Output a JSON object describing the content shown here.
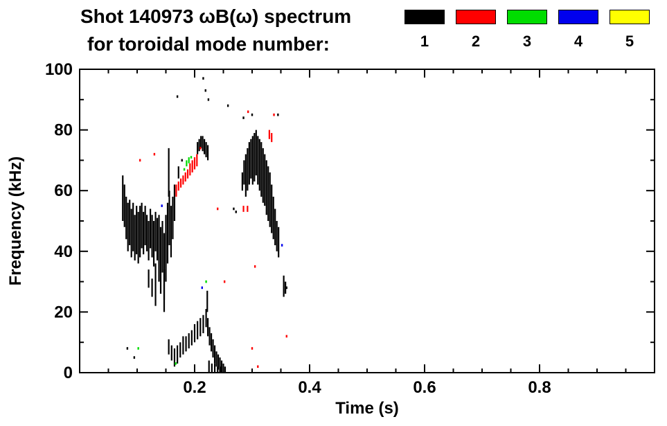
{
  "chart_data": {
    "type": "scatter",
    "title_line1": "Shot 140973 ωB(ω) spectrum",
    "title_line2": "for toroidal mode number:",
    "xlabel": "Time (s)",
    "ylabel": "Frequency (kHz)",
    "xlim": [
      0.0,
      1.0
    ],
    "ylim": [
      0,
      100
    ],
    "xticks": [
      0.2,
      0.4,
      0.6,
      0.8
    ],
    "xminor_step": 0.05,
    "yticks": [
      0,
      20,
      40,
      60,
      80,
      100
    ],
    "yminor_step": 10,
    "grid": false,
    "legend_position": "top-right",
    "legend": [
      {
        "label": "1",
        "color": "#000000"
      },
      {
        "label": "2",
        "color": "#ff0000"
      },
      {
        "label": "3",
        "color": "#00dd00"
      },
      {
        "label": "4",
        "color": "#0000ee"
      },
      {
        "label": "5",
        "color": "#ffff00"
      }
    ],
    "series": [
      {
        "name": "1",
        "color": "#000000",
        "segments": [
          [
            0.075,
            50,
            65
          ],
          [
            0.078,
            48,
            62
          ],
          [
            0.081,
            44,
            58
          ],
          [
            0.084,
            40,
            56
          ],
          [
            0.087,
            42,
            57
          ],
          [
            0.09,
            38,
            54
          ],
          [
            0.093,
            40,
            56
          ],
          [
            0.096,
            37,
            52
          ],
          [
            0.099,
            39,
            55
          ],
          [
            0.102,
            36,
            53
          ],
          [
            0.105,
            38,
            55
          ],
          [
            0.108,
            41,
            56
          ],
          [
            0.111,
            39,
            53
          ],
          [
            0.114,
            42,
            55
          ],
          [
            0.117,
            40,
            52
          ],
          [
            0.12,
            37,
            50
          ],
          [
            0.123,
            41,
            54
          ],
          [
            0.126,
            38,
            52
          ],
          [
            0.129,
            35,
            50
          ],
          [
            0.132,
            40,
            53
          ],
          [
            0.135,
            37,
            51
          ],
          [
            0.138,
            30,
            52
          ],
          [
            0.141,
            26,
            48
          ],
          [
            0.144,
            33,
            50
          ],
          [
            0.147,
            24,
            46
          ],
          [
            0.15,
            30,
            52
          ],
          [
            0.153,
            36,
            56
          ],
          [
            0.156,
            42,
            60
          ],
          [
            0.159,
            38,
            55
          ],
          [
            0.162,
            44,
            58
          ],
          [
            0.132,
            22,
            36
          ],
          [
            0.147,
            20,
            34
          ],
          [
            0.12,
            28,
            34
          ],
          [
            0.126,
            25,
            31
          ],
          [
            0.155,
            58,
            74
          ],
          [
            0.165,
            50,
            62
          ],
          [
            0.172,
            64,
            68
          ],
          [
            0.205,
            72,
            76
          ],
          [
            0.208,
            73,
            77
          ],
          [
            0.211,
            74,
            78
          ],
          [
            0.214,
            73,
            78
          ],
          [
            0.217,
            72,
            77
          ],
          [
            0.22,
            71,
            76
          ],
          [
            0.223,
            70,
            75
          ],
          [
            0.283,
            60,
            66
          ],
          [
            0.286,
            62,
            70
          ],
          [
            0.289,
            58,
            72
          ],
          [
            0.292,
            60,
            74
          ],
          [
            0.295,
            62,
            76
          ],
          [
            0.298,
            64,
            77
          ],
          [
            0.301,
            62,
            78
          ],
          [
            0.304,
            63,
            79
          ],
          [
            0.307,
            65,
            80
          ],
          [
            0.31,
            62,
            78
          ],
          [
            0.313,
            60,
            77
          ],
          [
            0.316,
            58,
            76
          ],
          [
            0.319,
            56,
            74
          ],
          [
            0.322,
            55,
            72
          ],
          [
            0.325,
            52,
            70
          ],
          [
            0.328,
            50,
            68
          ],
          [
            0.331,
            48,
            66
          ],
          [
            0.334,
            46,
            62
          ],
          [
            0.337,
            44,
            58
          ],
          [
            0.34,
            42,
            54
          ],
          [
            0.343,
            40,
            50
          ],
          [
            0.346,
            38,
            48
          ],
          [
            0.355,
            25,
            32
          ],
          [
            0.358,
            26,
            30
          ],
          [
            0.155,
            6,
            11
          ],
          [
            0.16,
            4,
            9
          ],
          [
            0.165,
            2,
            8
          ],
          [
            0.17,
            3,
            9
          ],
          [
            0.175,
            5,
            10
          ],
          [
            0.18,
            6,
            12
          ],
          [
            0.185,
            7,
            12
          ],
          [
            0.19,
            8,
            13
          ],
          [
            0.195,
            9,
            14
          ],
          [
            0.2,
            10,
            16
          ],
          [
            0.205,
            11,
            17
          ],
          [
            0.21,
            12,
            18
          ],
          [
            0.215,
            13,
            19
          ],
          [
            0.22,
            15,
            21
          ],
          [
            0.222,
            20,
            27
          ],
          [
            0.223,
            12,
            18
          ],
          [
            0.226,
            9,
            15
          ],
          [
            0.229,
            7,
            13
          ],
          [
            0.232,
            5,
            11
          ],
          [
            0.235,
            3,
            9
          ],
          [
            0.238,
            2,
            7
          ],
          [
            0.241,
            1,
            6
          ],
          [
            0.244,
            0,
            5
          ],
          [
            0.247,
            0,
            4
          ],
          [
            0.25,
            0,
            3
          ],
          [
            0.253,
            0,
            2
          ],
          [
            0.225,
            0,
            4
          ],
          [
            0.23,
            0,
            3
          ],
          [
            0.235,
            0,
            3
          ],
          [
            0.24,
            0,
            2
          ],
          [
            0.245,
            0,
            2
          ],
          [
            0.25,
            0,
            2
          ]
        ],
        "points": [
          [
            0.215,
            97
          ],
          [
            0.219,
            93
          ],
          [
            0.224,
            90
          ],
          [
            0.17,
            91
          ],
          [
            0.258,
            88
          ],
          [
            0.3,
            85
          ],
          [
            0.345,
            85
          ],
          [
            0.285,
            84
          ],
          [
            0.083,
            8
          ],
          [
            0.095,
            5
          ],
          [
            0.268,
            54
          ],
          [
            0.272,
            53
          ],
          [
            0.36,
            28
          ],
          [
            0.178,
            70
          ]
        ]
      },
      {
        "name": "2",
        "color": "#ff0000",
        "segments": [
          [
            0.168,
            58,
            62
          ],
          [
            0.172,
            60,
            63
          ],
          [
            0.176,
            61,
            64
          ],
          [
            0.18,
            62,
            65
          ],
          [
            0.184,
            63,
            66
          ],
          [
            0.188,
            64,
            67
          ],
          [
            0.192,
            65,
            69
          ],
          [
            0.196,
            66,
            70
          ],
          [
            0.2,
            67,
            71
          ],
          [
            0.204,
            68,
            72
          ],
          [
            0.33,
            77,
            80
          ],
          [
            0.334,
            76,
            79
          ],
          [
            0.285,
            53,
            55
          ],
          [
            0.292,
            53,
            55
          ]
        ],
        "points": [
          [
            0.338,
            85
          ],
          [
            0.293,
            86
          ],
          [
            0.252,
            30
          ],
          [
            0.305,
            35
          ],
          [
            0.3,
            8
          ],
          [
            0.31,
            2
          ],
          [
            0.36,
            12
          ],
          [
            0.13,
            72
          ],
          [
            0.105,
            70
          ],
          [
            0.21,
            74
          ],
          [
            0.24,
            54
          ]
        ]
      },
      {
        "name": "3",
        "color": "#00dd00",
        "segments": [
          [
            0.186,
            68,
            70
          ],
          [
            0.19,
            69,
            71
          ]
        ],
        "points": [
          [
            0.182,
            67
          ],
          [
            0.194,
            71
          ],
          [
            0.102,
            8
          ],
          [
            0.22,
            30
          ],
          [
            0.167,
            3
          ]
        ]
      },
      {
        "name": "4",
        "color": "#0000ee",
        "segments": [],
        "points": [
          [
            0.143,
            55
          ],
          [
            0.213,
            28
          ],
          [
            0.352,
            42
          ]
        ]
      },
      {
        "name": "5",
        "color": "#ffff00",
        "segments": [],
        "points": []
      }
    ]
  }
}
